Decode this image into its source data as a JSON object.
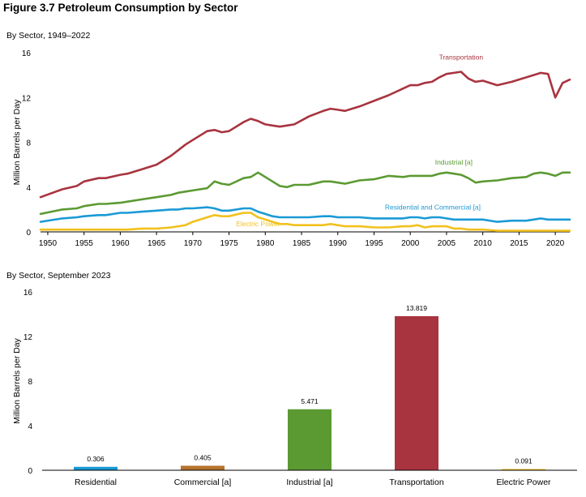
{
  "figure_title": "Figure 3.7  Petroleum Consumption by Sector",
  "chart_data": [
    {
      "type": "line",
      "subtitle": "By Sector, 1949–2022",
      "ylabel": "Million Barrels per Day",
      "xlim": [
        1949,
        2022
      ],
      "ylim": [
        0,
        16
      ],
      "yticks": [
        0,
        4,
        8,
        12,
        16
      ],
      "xticks": [
        1950,
        1955,
        1960,
        1965,
        1970,
        1975,
        1980,
        1985,
        1990,
        1995,
        2000,
        2005,
        2010,
        2015,
        2020
      ],
      "x": [
        1949,
        1952,
        1954,
        1955,
        1957,
        1958,
        1960,
        1961,
        1963,
        1965,
        1967,
        1968,
        1969,
        1970,
        1972,
        1973,
        1974,
        1975,
        1977,
        1978,
        1979,
        1980,
        1981,
        1982,
        1983,
        1984,
        1986,
        1988,
        1989,
        1990,
        1991,
        1993,
        1995,
        1997,
        1999,
        2000,
        2001,
        2002,
        2003,
        2004,
        2005,
        2006,
        2007,
        2008,
        2009,
        2010,
        2012,
        2014,
        2016,
        2017,
        2018,
        2019,
        2020,
        2021,
        2022
      ],
      "series": [
        {
          "name": "Transportation",
          "color": "#A8343F",
          "values": [
            3.1,
            3.8,
            4.1,
            4.5,
            4.8,
            4.8,
            5.1,
            5.2,
            5.6,
            6.0,
            6.8,
            7.3,
            7.8,
            8.2,
            9.0,
            9.1,
            8.9,
            9.0,
            9.8,
            10.1,
            9.9,
            9.6,
            9.5,
            9.4,
            9.5,
            9.6,
            10.3,
            10.8,
            11.0,
            10.9,
            10.8,
            11.2,
            11.7,
            12.2,
            12.8,
            13.1,
            13.1,
            13.3,
            13.4,
            13.8,
            14.1,
            14.2,
            14.3,
            13.7,
            13.4,
            13.5,
            13.1,
            13.4,
            13.8,
            14.0,
            14.2,
            14.1,
            12.0,
            13.3,
            13.6
          ]
        },
        {
          "name": "Industrial [a]",
          "color": "#5B9A32",
          "values": [
            1.6,
            2.0,
            2.1,
            2.3,
            2.5,
            2.5,
            2.6,
            2.7,
            2.9,
            3.1,
            3.3,
            3.5,
            3.6,
            3.7,
            3.9,
            4.5,
            4.3,
            4.2,
            4.8,
            4.9,
            5.3,
            4.9,
            4.5,
            4.1,
            4.0,
            4.2,
            4.2,
            4.5,
            4.5,
            4.4,
            4.3,
            4.6,
            4.7,
            5.0,
            4.9,
            5.0,
            5.0,
            5.0,
            5.0,
            5.2,
            5.3,
            5.2,
            5.1,
            4.8,
            4.4,
            4.5,
            4.6,
            4.8,
            4.9,
            5.2,
            5.3,
            5.2,
            5.0,
            5.3,
            5.3
          ]
        },
        {
          "name": "Residential and Commercial [a]",
          "color": "#1A9AD6",
          "values": [
            0.9,
            1.2,
            1.3,
            1.4,
            1.5,
            1.5,
            1.7,
            1.7,
            1.8,
            1.9,
            2.0,
            2.0,
            2.1,
            2.1,
            2.2,
            2.1,
            1.9,
            1.9,
            2.1,
            2.1,
            1.8,
            1.6,
            1.4,
            1.3,
            1.3,
            1.3,
            1.3,
            1.4,
            1.4,
            1.3,
            1.3,
            1.3,
            1.2,
            1.2,
            1.2,
            1.3,
            1.3,
            1.2,
            1.3,
            1.3,
            1.2,
            1.1,
            1.1,
            1.1,
            1.1,
            1.1,
            0.9,
            1.0,
            1.0,
            1.1,
            1.2,
            1.1,
            1.1,
            1.1,
            1.1
          ]
        },
        {
          "name": "Electric Power",
          "color": "#F2C11E",
          "values": [
            0.2,
            0.2,
            0.2,
            0.2,
            0.2,
            0.2,
            0.2,
            0.2,
            0.3,
            0.3,
            0.4,
            0.5,
            0.6,
            0.9,
            1.3,
            1.5,
            1.4,
            1.4,
            1.7,
            1.7,
            1.3,
            1.1,
            0.9,
            0.7,
            0.7,
            0.6,
            0.6,
            0.6,
            0.7,
            0.6,
            0.5,
            0.5,
            0.4,
            0.4,
            0.5,
            0.5,
            0.6,
            0.4,
            0.5,
            0.5,
            0.5,
            0.3,
            0.3,
            0.2,
            0.2,
            0.2,
            0.1,
            0.1,
            0.1,
            0.1,
            0.1,
            0.1,
            0.1,
            0.1,
            0.1
          ]
        }
      ]
    },
    {
      "type": "bar",
      "subtitle": "By Sector, September 2023",
      "ylabel": "Million Barrels per Day",
      "ylim": [
        0,
        16
      ],
      "yticks": [
        0,
        4,
        8,
        12,
        16
      ],
      "categories": [
        "Residential",
        "Commercial [a]",
        "Industrial [a]",
        "Transportation",
        "Electric Power"
      ],
      "values": [
        0.306,
        0.405,
        5.471,
        13.819,
        0.091
      ],
      "value_labels": [
        "0.306",
        "0.405",
        "5.471",
        "13.819",
        "0.091"
      ],
      "colors": [
        "#1A9AD6",
        "#B8732E",
        "#5B9A32",
        "#A8343F",
        "#F2C11E"
      ]
    }
  ]
}
